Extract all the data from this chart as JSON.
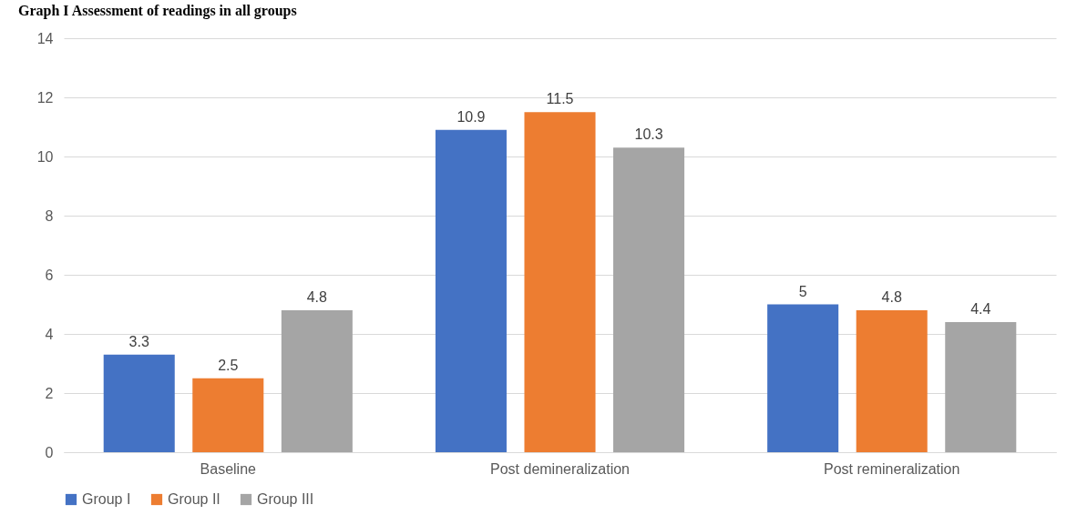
{
  "chart_data": {
    "type": "bar",
    "title": "Graph I Assessment of readings in all groups",
    "categories": [
      "Baseline",
      "Post demineralization",
      "Post remineralization"
    ],
    "series": [
      {
        "name": "Group I",
        "color": "#4472c4",
        "values": [
          3.3,
          10.9,
          5
        ]
      },
      {
        "name": "Group II",
        "color": "#ed7d31",
        "values": [
          2.5,
          11.5,
          4.8
        ]
      },
      {
        "name": "Group III",
        "color": "#a5a5a5",
        "values": [
          4.8,
          10.3,
          4.4
        ]
      }
    ],
    "ylim": [
      0,
      14
    ],
    "yticks": [
      0,
      2,
      4,
      6,
      8,
      10,
      12,
      14
    ],
    "grid": "y",
    "legend": "bottom",
    "data_labels": true
  }
}
